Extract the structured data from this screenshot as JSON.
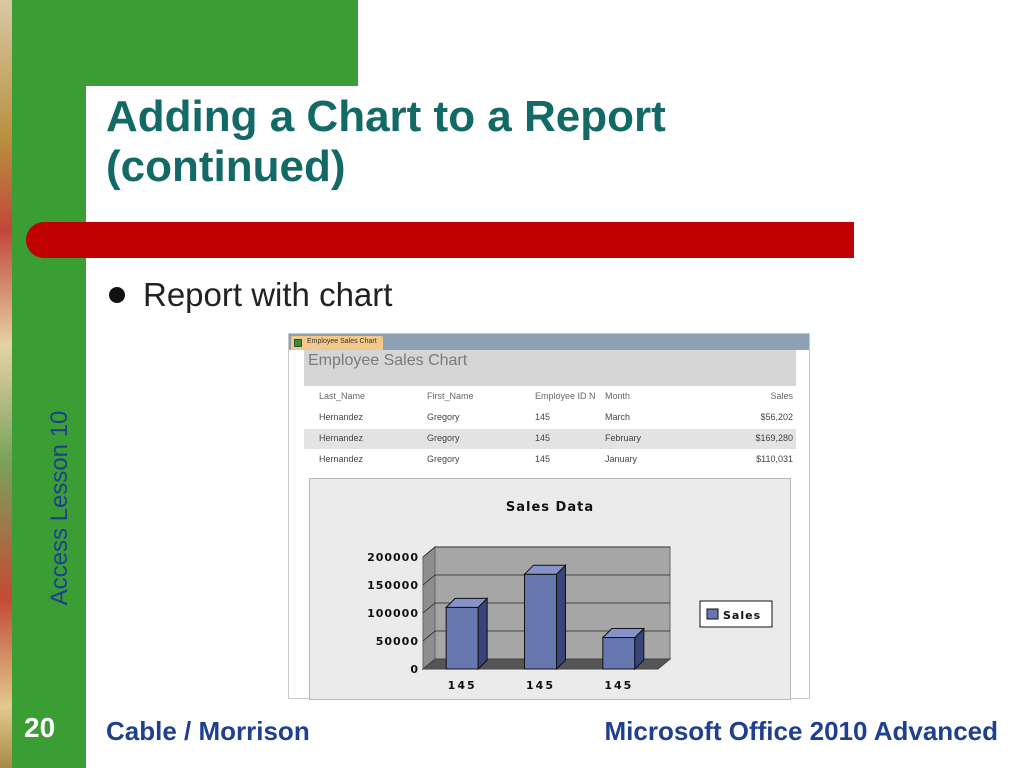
{
  "slide": {
    "title_line1": "Adding a Chart to a Report",
    "title_line2": "(continued)",
    "side_label": "Access Lesson 10",
    "bullet": "Report with chart",
    "page_number": "20",
    "footer_left": "Cable / Morrison",
    "footer_right": "Microsoft Office 2010 Advanced"
  },
  "report": {
    "tab_label": "Employee Sales Chart",
    "title": "Employee Sales Chart",
    "columns": [
      "Last_Name",
      "First_Name",
      "Employee ID N",
      "Month",
      "Sales"
    ],
    "rows": [
      [
        "Hernandez",
        "Gregory",
        "145",
        "March",
        "$56,202"
      ],
      [
        "Hernandez",
        "Gregory",
        "145",
        "February",
        "$169,280"
      ],
      [
        "Hernandez",
        "Gregory",
        "145",
        "January",
        "$110,031"
      ]
    ]
  },
  "colors": {
    "green": "#3a9e35",
    "title": "#136966",
    "red_bar": "#c00000",
    "bar": "#6677b0"
  },
  "chart_data": {
    "type": "bar",
    "title": "Sales Data",
    "categories": [
      "145",
      "145",
      "145"
    ],
    "series": [
      {
        "name": "Sales",
        "values": [
          110031,
          169280,
          56202
        ]
      }
    ],
    "ylim": [
      0,
      200000
    ],
    "yticks": [
      "200000",
      "150000",
      "100000",
      "50000",
      "0"
    ],
    "grid": true,
    "legend": "right",
    "xlabel": "",
    "ylabel": ""
  }
}
